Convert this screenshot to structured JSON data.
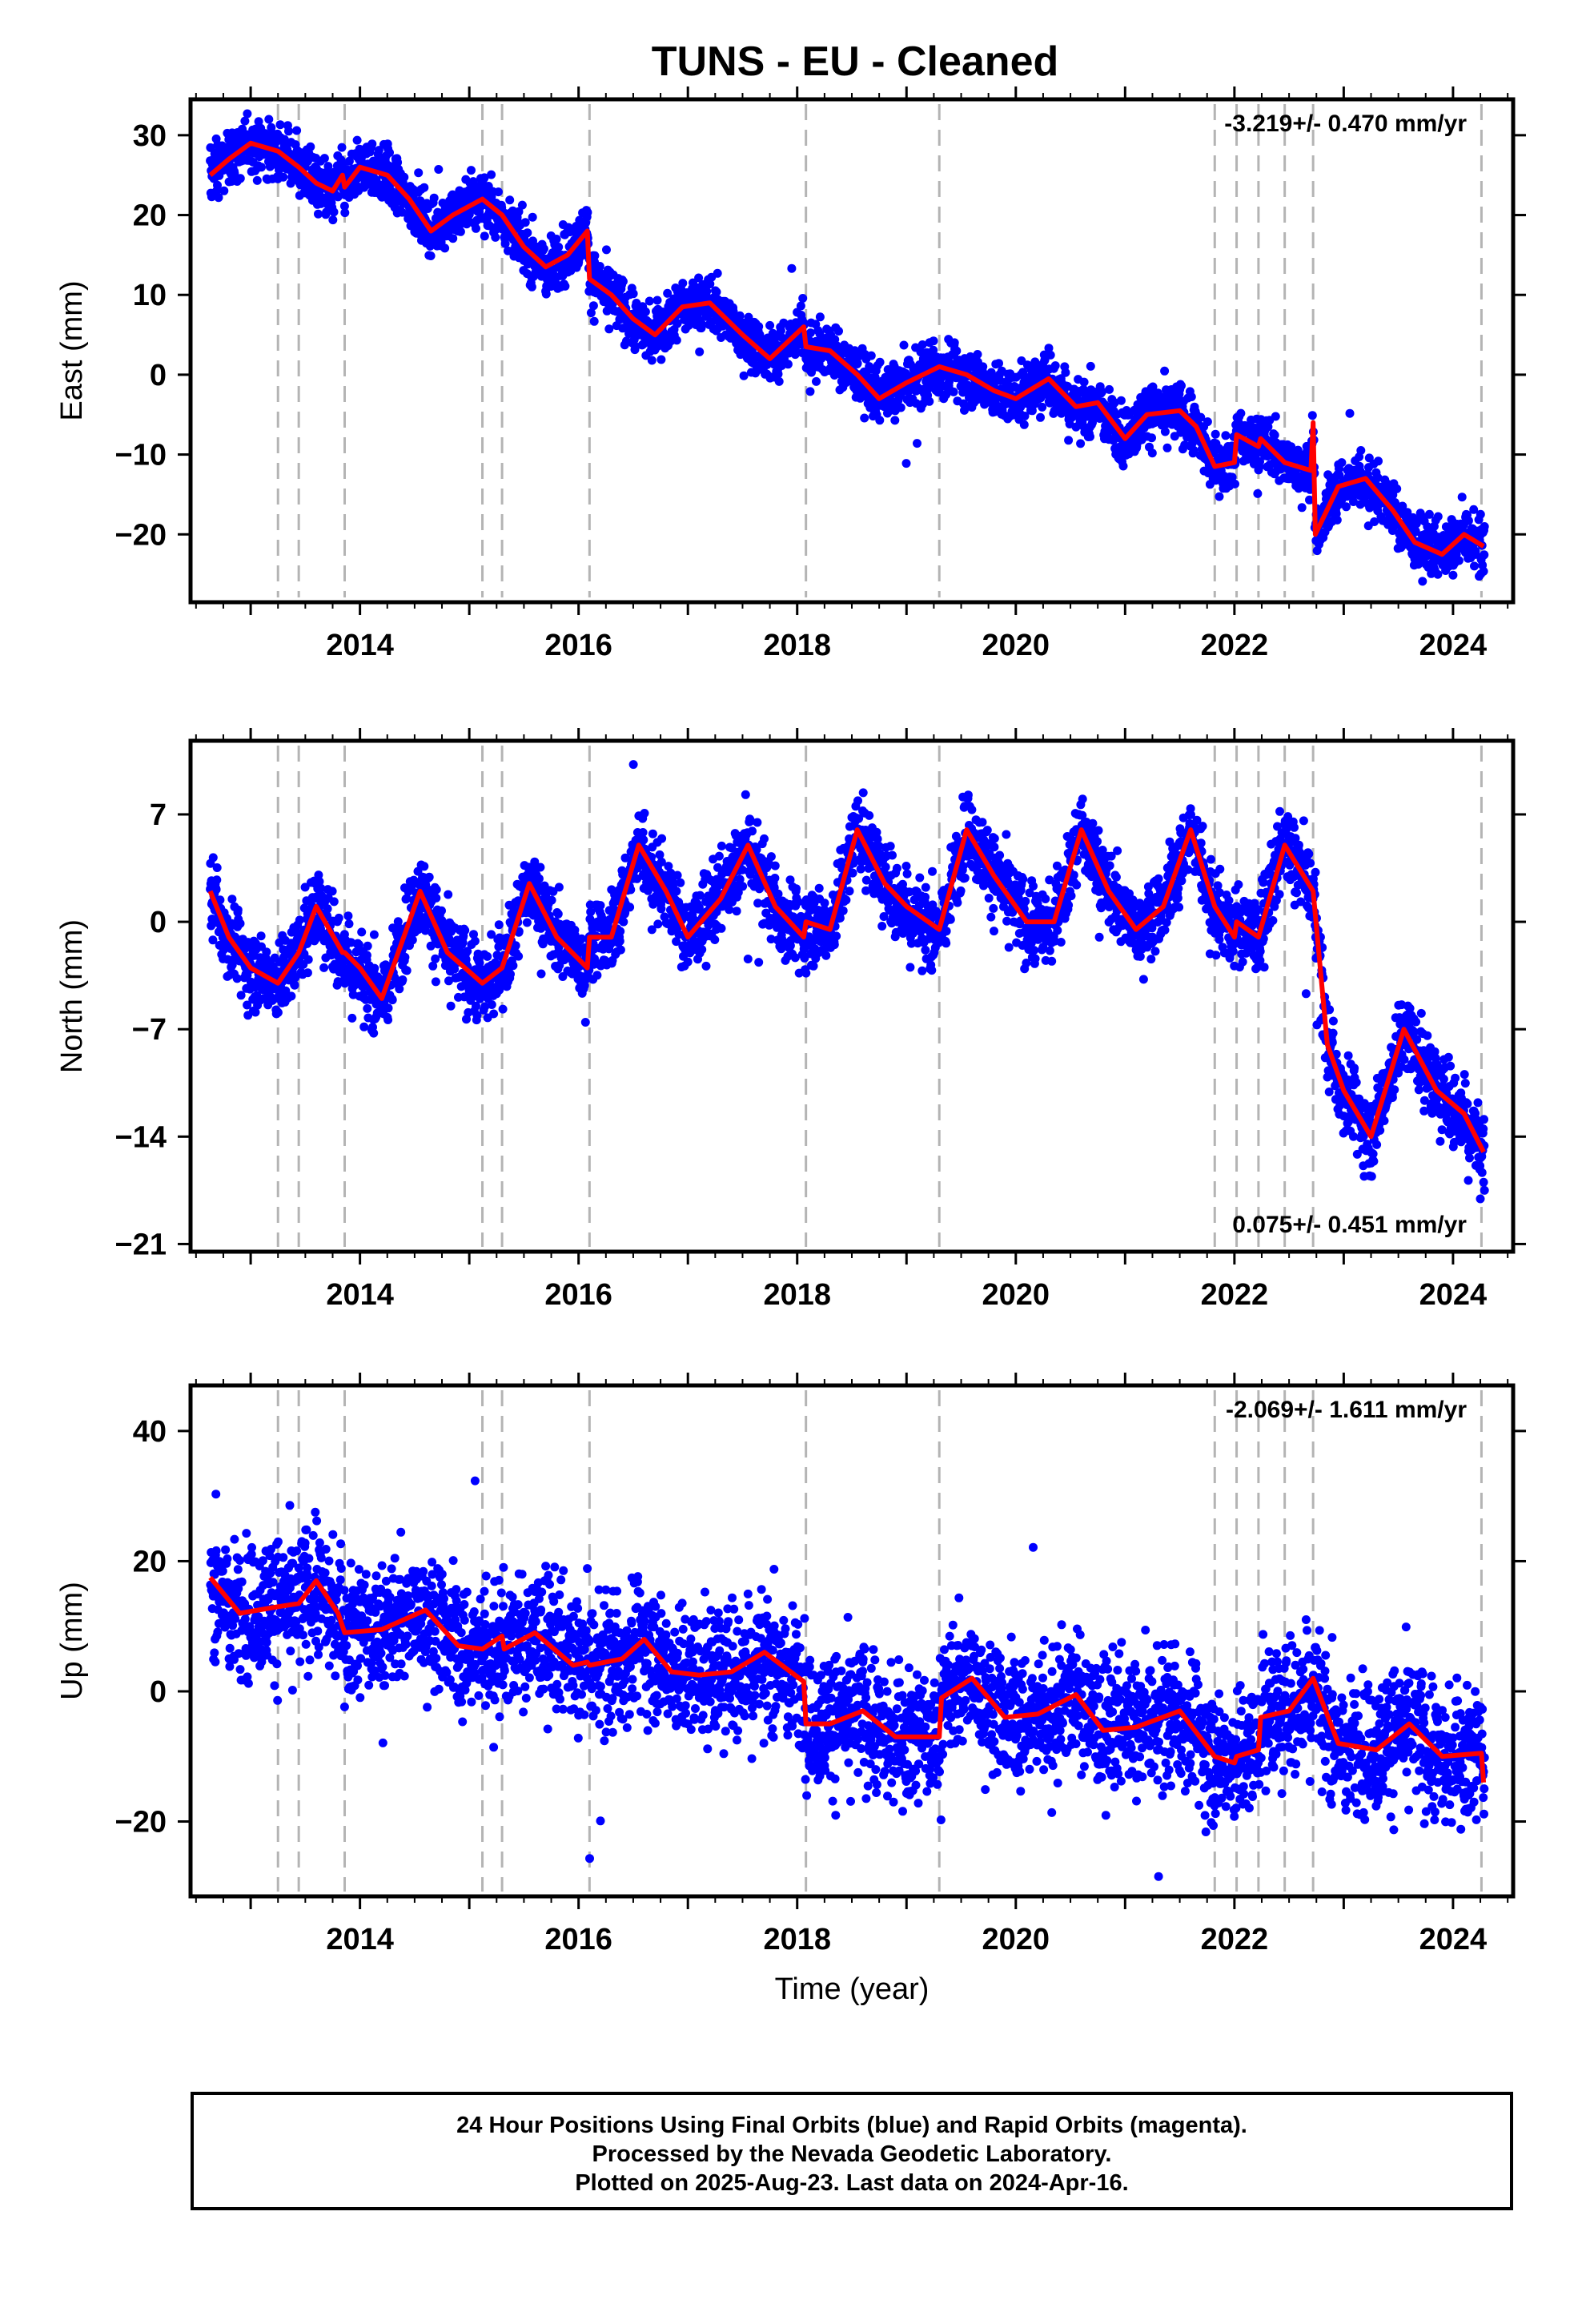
{
  "figure": {
    "title": "TUNS  - EU - Cleaned",
    "colors": {
      "points": "#0000ff",
      "model": "#ff0000",
      "offsets": "#b4b4b4"
    }
  },
  "chart_data": [
    {
      "type": "scatter",
      "component": "East",
      "ylabel": "East (mm)",
      "xlabel": "",
      "xlim": [
        2012.45,
        2024.55
      ],
      "ylim": [
        -28.5,
        34.5
      ],
      "yticks": [
        -20,
        -10,
        0,
        10,
        20,
        30
      ],
      "xticks": [
        2014,
        2016,
        2018,
        2020,
        2022,
        2024
      ],
      "rate_label": "-3.219+/- 0.470 mm/yr",
      "rate_position": "top-right",
      "offset_epochs": [
        2013.25,
        2013.44,
        2013.86,
        2015.12,
        2015.3,
        2016.1,
        2018.08,
        2019.3,
        2021.82,
        2022.02,
        2022.22,
        2022.46,
        2022.72,
        2024.26
      ],
      "model": {
        "x": [
          2012.63,
          2012.8,
          2013.0,
          2013.25,
          2013.44,
          2013.6,
          2013.75,
          2013.84,
          2013.86,
          2014.0,
          2014.25,
          2014.45,
          2014.65,
          2014.85,
          2015.12,
          2015.3,
          2015.5,
          2015.7,
          2015.9,
          2016.08,
          2016.1,
          2016.3,
          2016.5,
          2016.7,
          2016.95,
          2017.2,
          2017.5,
          2017.75,
          2018.06,
          2018.08,
          2018.3,
          2018.55,
          2018.75,
          2019.0,
          2019.3,
          2019.55,
          2019.8,
          2020.0,
          2020.3,
          2020.55,
          2020.75,
          2021.0,
          2021.2,
          2021.5,
          2021.65,
          2021.82,
          2022.0,
          2022.02,
          2022.22,
          2022.24,
          2022.46,
          2022.7,
          2022.72,
          2022.74,
          2022.95,
          2023.2,
          2023.45,
          2023.65,
          2023.9,
          2024.1,
          2024.28
        ],
        "y": [
          25,
          27,
          29,
          28,
          26,
          24,
          23,
          25,
          23.5,
          26,
          25,
          22,
          18,
          20,
          22,
          20,
          16,
          13.5,
          15,
          18,
          12,
          10,
          7,
          5,
          8.5,
          9,
          5,
          2,
          6,
          3.5,
          3,
          0,
          -3,
          -1,
          1,
          0,
          -2,
          -3,
          -0.5,
          -4,
          -3.5,
          -8,
          -5,
          -4.5,
          -6.5,
          -11.5,
          -11,
          -7.5,
          -9,
          -8,
          -11,
          -12,
          -6,
          -20,
          -14,
          -13,
          -17,
          -21,
          -22.5,
          -20,
          -21.5
        ]
      },
      "points_summary": {
        "count_approx": 4000,
        "span": [
          2012.63,
          2024.29
        ]
      }
    },
    {
      "type": "scatter",
      "component": "North",
      "ylabel": "North (mm)",
      "xlabel": "",
      "xlim": [
        2012.45,
        2024.55
      ],
      "ylim": [
        -21.5,
        11.8
      ],
      "yticks": [
        -21,
        -14,
        -7,
        0,
        7
      ],
      "xticks": [
        2014,
        2016,
        2018,
        2020,
        2022,
        2024
      ],
      "rate_label": "0.075+/- 0.451 mm/yr",
      "rate_position": "bottom-right",
      "offset_epochs": [
        2013.25,
        2013.44,
        2013.86,
        2015.12,
        2015.3,
        2016.1,
        2018.08,
        2019.3,
        2021.82,
        2022.02,
        2022.22,
        2022.46,
        2022.72,
        2024.26
      ],
      "model": {
        "x": [
          2012.63,
          2012.8,
          2013.0,
          2013.25,
          2013.44,
          2013.6,
          2013.84,
          2013.86,
          2014.0,
          2014.2,
          2014.55,
          2014.8,
          2015.12,
          2015.3,
          2015.55,
          2015.8,
          2016.08,
          2016.1,
          2016.3,
          2016.55,
          2016.8,
          2017.0,
          2017.3,
          2017.55,
          2017.8,
          2018.06,
          2018.08,
          2018.3,
          2018.55,
          2018.8,
          2019.0,
          2019.3,
          2019.55,
          2019.8,
          2020.1,
          2020.35,
          2020.6,
          2020.85,
          2021.1,
          2021.35,
          2021.6,
          2021.82,
          2022.0,
          2022.02,
          2022.22,
          2022.46,
          2022.72,
          2022.85,
          2023.0,
          2023.25,
          2023.55,
          2023.85,
          2024.1,
          2024.28
        ],
        "y": [
          2,
          -1,
          -3,
          -4,
          -2,
          1,
          -2,
          -2,
          -3,
          -5,
          2,
          -2,
          -4,
          -3,
          2.5,
          -1,
          -3,
          -1,
          -1,
          5,
          2,
          -1,
          1.5,
          5,
          1,
          -1,
          0,
          -0.5,
          6,
          2.5,
          1,
          -0.5,
          6,
          3,
          0,
          0,
          6,
          2,
          -0.5,
          1,
          6,
          1,
          -1,
          0,
          -1,
          5,
          2,
          -8,
          -11,
          -14,
          -7,
          -11,
          -12.5,
          -15
        ]
      },
      "points_summary": {
        "count_approx": 4000,
        "span": [
          2012.63,
          2024.29
        ]
      }
    },
    {
      "type": "scatter",
      "component": "Up",
      "ylabel": "Up (mm)",
      "xlabel": "Time (year)",
      "xlim": [
        2012.45,
        2024.55
      ],
      "ylim": [
        -31.5,
        47
      ],
      "yticks": [
        -20,
        0,
        20,
        40
      ],
      "xticks": [
        2014,
        2016,
        2018,
        2020,
        2022,
        2024
      ],
      "rate_label": "-2.069+/- 1.611 mm/yr",
      "rate_position": "top-right",
      "offset_epochs": [
        2013.25,
        2013.44,
        2013.86,
        2015.12,
        2015.3,
        2016.1,
        2018.08,
        2019.3,
        2021.82,
        2022.02,
        2022.22,
        2022.46,
        2022.72,
        2024.26
      ],
      "model": {
        "x": [
          2012.63,
          2012.9,
          2013.25,
          2013.44,
          2013.6,
          2013.8,
          2013.86,
          2014.2,
          2014.6,
          2014.9,
          2015.12,
          2015.3,
          2015.32,
          2015.6,
          2015.95,
          2016.08,
          2016.1,
          2016.4,
          2016.6,
          2016.85,
          2017.1,
          2017.4,
          2017.7,
          2018.06,
          2018.08,
          2018.3,
          2018.6,
          2018.9,
          2019.3,
          2019.32,
          2019.6,
          2019.9,
          2020.2,
          2020.55,
          2020.8,
          2021.1,
          2021.5,
          2021.82,
          2022.0,
          2022.02,
          2022.22,
          2022.24,
          2022.5,
          2022.72,
          2022.95,
          2023.3,
          2023.6,
          2023.9,
          2024.26,
          2024.28
        ],
        "y": [
          17.5,
          12,
          13,
          13.5,
          17,
          12,
          9,
          9.5,
          12.5,
          7,
          6.5,
          8.5,
          6.5,
          9,
          4,
          4.5,
          4,
          5,
          8,
          3,
          2.5,
          3,
          6,
          1.5,
          -5,
          -5,
          -3,
          -7,
          -7,
          -1,
          2,
          -4,
          -3.5,
          -0.5,
          -6,
          -5.5,
          -3,
          -10,
          -11,
          -10,
          -9,
          -4,
          -3,
          2,
          -8,
          -9,
          -5,
          -10,
          -9.5,
          -14
        ]
      },
      "points_summary": {
        "count_approx": 4000,
        "span": [
          2012.63,
          2024.29
        ]
      }
    }
  ],
  "footer": {
    "line1": "24 Hour Positions Using Final Orbits (blue) and Rapid Orbits (magenta).",
    "line2": "Processed by the Nevada Geodetic Laboratory.",
    "line3": "Plotted on 2025-Aug-23. Last data on 2024-Apr-16."
  }
}
